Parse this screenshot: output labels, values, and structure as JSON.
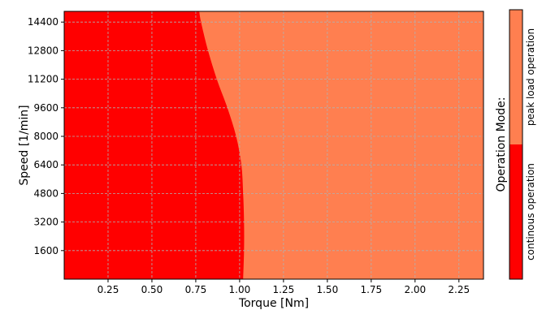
{
  "chart_data": {
    "type": "area",
    "title": "",
    "xlabel": "Torque [Nm]",
    "ylabel": "Speed [1/min]",
    "xlim": [
      0,
      2.39
    ],
    "ylim": [
      0,
      15000
    ],
    "x_ticks": [
      "0.25",
      "0.50",
      "0.75",
      "1.00",
      "1.25",
      "1.50",
      "1.75",
      "2.00",
      "2.25"
    ],
    "y_ticks": [
      "1600",
      "3200",
      "4800",
      "6400",
      "8000",
      "9600",
      "11200",
      "12800",
      "14400"
    ],
    "grid": true,
    "boundary": {
      "name": "continuous/peak boundary",
      "speed": [
        0,
        1600,
        3200,
        4800,
        6400,
        8000,
        9600,
        11200,
        12800,
        14400,
        15000
      ],
      "torque": [
        1.02,
        1.025,
        1.025,
        1.02,
        1.01,
        0.98,
        0.93,
        0.87,
        0.82,
        0.78,
        0.77
      ]
    },
    "regions": [
      {
        "name": "continous operation",
        "color": "#ff0000",
        "side": "below-torque"
      },
      {
        "name": "peak load operation",
        "color": "#ff7f50",
        "side": "above-torque"
      }
    ],
    "colorbar": {
      "title": "Operation Mode:",
      "labels": [
        "continous operation",
        "peak load operation"
      ],
      "colors": [
        "#ff0000",
        "#ff7f50"
      ]
    }
  }
}
